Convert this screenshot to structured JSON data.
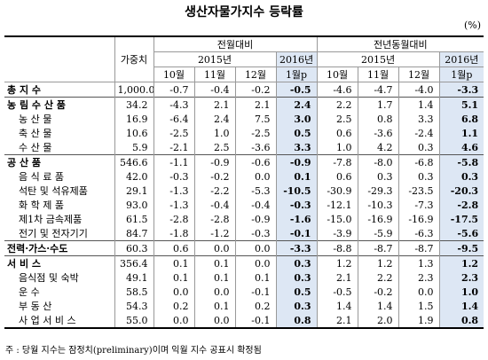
{
  "title": "생산자물가지수 등락률",
  "unit": "(%)",
  "header": {
    "weight": "가중치",
    "groups": [
      {
        "title": "전월대비",
        "years": [
          {
            "label": "2015년",
            "months": [
              "10월",
              "11월",
              "12월"
            ]
          },
          {
            "label": "2016년",
            "months": [
              "1월p"
            ]
          }
        ]
      },
      {
        "title": "전년동월대비",
        "years": [
          {
            "label": "2015년",
            "months": [
              "10월",
              "11월",
              "12월"
            ]
          },
          {
            "label": "2016년",
            "months": [
              "1월p"
            ]
          }
        ]
      }
    ]
  },
  "groups": [
    {
      "label": "총 지 수",
      "weight": "1,000.0",
      "values": [
        "-0.7",
        "-0.4",
        "-0.2",
        "-0.5",
        "-4.6",
        "-4.7",
        "-4.0",
        "-3.3"
      ],
      "items": []
    },
    {
      "label": "농 림 수 산 품",
      "weight": "34.2",
      "values": [
        "-4.3",
        "2.1",
        "2.1",
        "2.4",
        "2.2",
        "1.7",
        "1.4",
        "5.1"
      ],
      "items": [
        {
          "label": "농 산 물",
          "weight": "16.9",
          "values": [
            "-6.4",
            "2.4",
            "7.5",
            "3.0",
            "2.5",
            "0.8",
            "3.3",
            "6.8"
          ]
        },
        {
          "label": "축 산 물",
          "weight": "10.6",
          "values": [
            "-2.5",
            "1.0",
            "-2.5",
            "0.5",
            "0.6",
            "-3.6",
            "-2.4",
            "1.1"
          ]
        },
        {
          "label": "수 산 물",
          "weight": "5.9",
          "values": [
            "-2.1",
            "2.5",
            "-3.6",
            "3.3",
            "1.0",
            "4.2",
            "0.3",
            "4.6"
          ]
        }
      ]
    },
    {
      "label": "공 산 품",
      "weight": "546.6",
      "values": [
        "-1.1",
        "-0.9",
        "-0.6",
        "-0.9",
        "-7.8",
        "-8.0",
        "-6.8",
        "-5.8"
      ],
      "items": [
        {
          "label": "음 식 료 품",
          "weight": "42.0",
          "values": [
            "-0.3",
            "-0.2",
            "0.0",
            "0.1",
            "0.6",
            "0.3",
            "0.3",
            "0.3"
          ]
        },
        {
          "label": "석탄 및 석유제품",
          "weight": "29.1",
          "values": [
            "-1.3",
            "-2.2",
            "-5.3",
            "-10.5",
            "-30.9",
            "-29.3",
            "-23.5",
            "-20.3"
          ]
        },
        {
          "label": "화 학 제 품",
          "weight": "93.0",
          "values": [
            "-1.3",
            "-0.4",
            "-0.4",
            "-0.3",
            "-12.1",
            "-10.3",
            "-7.3",
            "-2.8"
          ]
        },
        {
          "label": "제1차 금속제품",
          "weight": "61.5",
          "values": [
            "-2.8",
            "-2.8",
            "-0.9",
            "-1.6",
            "-15.0",
            "-16.9",
            "-16.9",
            "-17.5"
          ]
        },
        {
          "label": "전기 및 전자기기",
          "weight": "84.7",
          "values": [
            "-1.8",
            "-1.2",
            "-0.3",
            "-0.1",
            "-3.9",
            "-5.9",
            "-6.3",
            "-5.6"
          ]
        }
      ]
    },
    {
      "label": "전력·가스·수도",
      "weight": "60.3",
      "values": [
        "0.6",
        "0.0",
        "0.0",
        "-3.3",
        "-8.8",
        "-8.7",
        "-8.7",
        "-9.5"
      ],
      "items": []
    },
    {
      "label": "서 비 스",
      "weight": "356.4",
      "values": [
        "0.1",
        "0.1",
        "0.0",
        "0.3",
        "1.2",
        "1.2",
        "1.3",
        "1.2"
      ],
      "items": [
        {
          "label": "음식점 및 숙박",
          "weight": "49.1",
          "values": [
            "0.1",
            "0.1",
            "0.1",
            "0.3",
            "2.1",
            "2.2",
            "2.3",
            "2.3"
          ]
        },
        {
          "label": "운 수",
          "weight": "58.5",
          "values": [
            "0.0",
            "0.0",
            "-0.1",
            "0.5",
            "-0.5",
            "-0.2",
            "0.0",
            "1.0"
          ]
        },
        {
          "label": "부 동 산",
          "weight": "54.3",
          "values": [
            "0.2",
            "0.1",
            "0.2",
            "0.3",
            "1.4",
            "1.4",
            "1.5",
            "1.4"
          ]
        },
        {
          "label": "사 업 서 비 스",
          "weight": "55.0",
          "values": [
            "0.0",
            "0.0",
            "-0.1",
            "0.8",
            "2.1",
            "2.0",
            "1.9",
            "0.8"
          ]
        }
      ]
    }
  ],
  "footnote": "주 : 당월 지수는 잠정치(preliminary)이며 익월 지수 공표시 확정됨"
}
